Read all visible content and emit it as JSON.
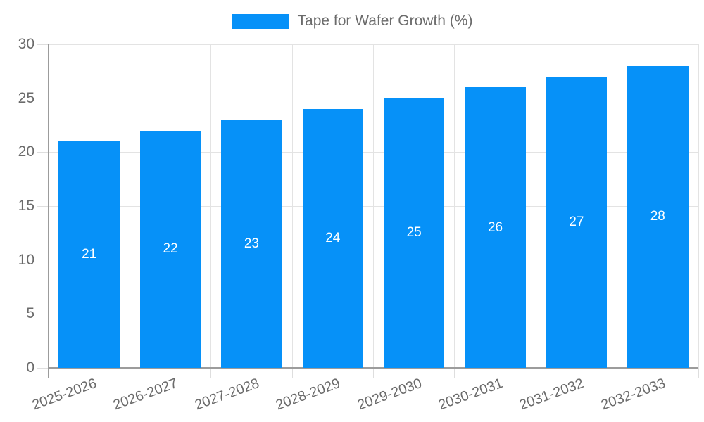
{
  "legend": {
    "label": "Tape for Wafer Growth (%)"
  },
  "colors": {
    "bar": "#0691F8",
    "grid": "#E3E3E3",
    "tick": "#DEDEDE",
    "axis": "#9C9C9C",
    "tick_label": "#6B6B6B",
    "bar_label": "#FFFFFF",
    "background": "#FFFFFF"
  },
  "chart_data": {
    "type": "bar",
    "title": "Tape for Wafer Growth (%)",
    "categories": [
      "2025-2026",
      "2026-2027",
      "2027-2028",
      "2028-2029",
      "2029-2030",
      "2030-2031",
      "2031-2032",
      "2032-2033"
    ],
    "values": [
      21,
      22,
      23,
      24,
      25,
      26,
      27,
      28
    ],
    "xlabel": "",
    "ylabel": "",
    "ylim": [
      0,
      30
    ],
    "yticks": [
      0,
      5,
      10,
      15,
      20,
      25,
      30
    ],
    "grid": true,
    "legend_position": "top",
    "bar_label_position": "center",
    "x_label_rotation_deg": -20,
    "bar_width_fraction": 0.75
  }
}
